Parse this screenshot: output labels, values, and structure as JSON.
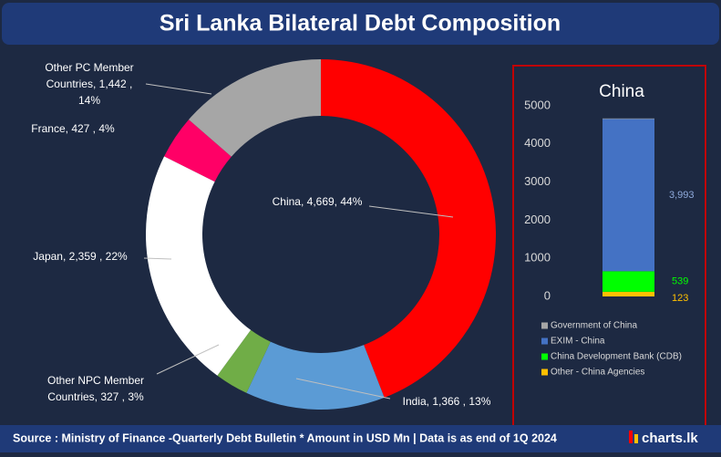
{
  "title": "Sri Lanka Bilateral Debt Composition",
  "footer": {
    "source": "Source : Ministry of Finance -Quarterly Debt Bulletin  * Amount in USD Mn | Data is as end of 1Q 2024",
    "brand": "charts.lk"
  },
  "chart_data": [
    {
      "type": "donut",
      "values": [
        4669,
        1366,
        327,
        2359,
        427,
        1442
      ],
      "labels": [
        [
          "China, 4,669, 44%"
        ],
        [
          "India, 1,366 , 13%"
        ],
        [
          "Other NPC Member",
          "Countries, 327 , 3%"
        ],
        [
          "Japan, 2,359 , 22%"
        ],
        [
          "France, 427 , 4%"
        ],
        [
          "Other PC Member",
          "Countries, 1,442 ,",
          "14%"
        ]
      ],
      "colors": [
        "#ff0000",
        "#5b9bd5",
        "#70ad47",
        "#ffffff",
        "#ff0066",
        "#a6a6a6"
      ]
    },
    {
      "type": "bar",
      "stacked": true,
      "title": "China",
      "ylim": [
        0,
        5000
      ],
      "yticks": [
        0,
        1000,
        2000,
        3000,
        4000,
        5000
      ],
      "series": [
        {
          "name": "Government of China",
          "color": "#a6a6a6",
          "values": [
            14
          ]
        },
        {
          "name": "EXIM - China",
          "color": "#4472c4",
          "values": [
            3993
          ],
          "value_labels": [
            "3,993"
          ]
        },
        {
          "name": "China Development Bank (CDB)",
          "color": "#00ff00",
          "values": [
            539
          ]
        },
        {
          "name": "Other - China Agencies",
          "color": "#ffc000",
          "values": [
            123
          ]
        }
      ]
    }
  ]
}
